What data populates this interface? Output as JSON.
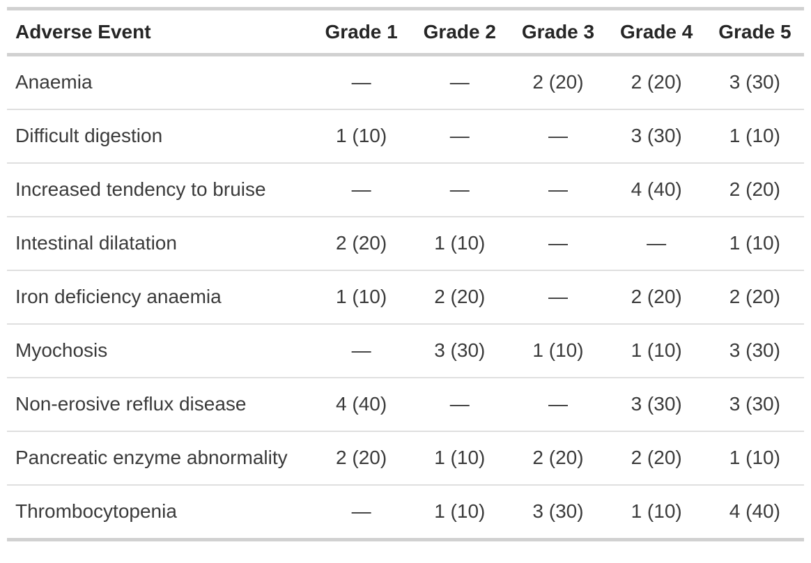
{
  "table": {
    "columns": [
      "Adverse Event",
      "Grade 1",
      "Grade 2",
      "Grade 3",
      "Grade 4",
      "Grade 5"
    ],
    "empty_marker": "—",
    "rows": [
      {
        "event": "Anaemia",
        "values": [
          "—",
          "—",
          "2 (20)",
          "2 (20)",
          "3 (30)"
        ]
      },
      {
        "event": "Difficult digestion",
        "values": [
          "1 (10)",
          "—",
          "—",
          "3 (30)",
          "1 (10)"
        ]
      },
      {
        "event": "Increased tendency to bruise",
        "values": [
          "—",
          "—",
          "—",
          "4 (40)",
          "2 (20)"
        ]
      },
      {
        "event": "Intestinal dilatation",
        "values": [
          "2 (20)",
          "1 (10)",
          "—",
          "—",
          "1 (10)"
        ]
      },
      {
        "event": "Iron deficiency anaemia",
        "values": [
          "1 (10)",
          "2 (20)",
          "—",
          "2 (20)",
          "2 (20)"
        ]
      },
      {
        "event": "Myochosis",
        "values": [
          "—",
          "3 (30)",
          "1 (10)",
          "1 (10)",
          "3 (30)"
        ]
      },
      {
        "event": "Non-erosive reflux disease",
        "values": [
          "4 (40)",
          "—",
          "—",
          "3 (30)",
          "3 (30)"
        ]
      },
      {
        "event": "Pancreatic enzyme abnormality",
        "values": [
          "2 (20)",
          "1 (10)",
          "2 (20)",
          "2 (20)",
          "1 (10)"
        ]
      },
      {
        "event": "Thrombocytopenia",
        "values": [
          "—",
          "1 (10)",
          "3 (30)",
          "1 (10)",
          "4 (40)"
        ]
      }
    ],
    "colors": {
      "header_text": "#262626",
      "body_text": "#3a3a3a",
      "border_thick": "#d1d1d1",
      "border_thin": "#dfdfdf",
      "background": "#ffffff"
    }
  },
  "chart_data": {
    "type": "table",
    "title": "",
    "columns": [
      "Adverse Event",
      "Grade 1",
      "Grade 2",
      "Grade 3",
      "Grade 4",
      "Grade 5"
    ],
    "rows": [
      [
        "Anaemia",
        "—",
        "—",
        "2 (20)",
        "2 (20)",
        "3 (30)"
      ],
      [
        "Difficult digestion",
        "1 (10)",
        "—",
        "—",
        "3 (30)",
        "1 (10)"
      ],
      [
        "Increased tendency to bruise",
        "—",
        "—",
        "—",
        "4 (40)",
        "2 (20)"
      ],
      [
        "Intestinal dilatation",
        "2 (20)",
        "1 (10)",
        "—",
        "—",
        "1 (10)"
      ],
      [
        "Iron deficiency anaemia",
        "1 (10)",
        "2 (20)",
        "—",
        "2 (20)",
        "2 (20)"
      ],
      [
        "Myochosis",
        "—",
        "3 (30)",
        "1 (10)",
        "1 (10)",
        "3 (30)"
      ],
      [
        "Non-erosive reflux disease",
        "4 (40)",
        "—",
        "—",
        "3 (30)",
        "3 (30)"
      ],
      [
        "Pancreatic enzyme abnormality",
        "2 (20)",
        "1 (10)",
        "2 (20)",
        "2 (20)",
        "1 (10)"
      ],
      [
        "Thrombocytopenia",
        "—",
        "1 (10)",
        "3 (30)",
        "1 (10)",
        "4 (40)"
      ]
    ],
    "counts": {
      "Anaemia": [
        null,
        null,
        2,
        2,
        3
      ],
      "Difficult digestion": [
        1,
        null,
        null,
        3,
        1
      ],
      "Increased tendency to bruise": [
        null,
        null,
        null,
        4,
        2
      ],
      "Intestinal dilatation": [
        2,
        1,
        null,
        null,
        1
      ],
      "Iron deficiency anaemia": [
        1,
        2,
        null,
        2,
        2
      ],
      "Myochosis": [
        null,
        3,
        1,
        1,
        3
      ],
      "Non-erosive reflux disease": [
        4,
        null,
        null,
        3,
        3
      ],
      "Pancreatic enzyme abnormality": [
        2,
        1,
        2,
        2,
        1
      ],
      "Thrombocytopenia": [
        null,
        1,
        3,
        1,
        4
      ]
    },
    "value_format": "n (percent)"
  }
}
